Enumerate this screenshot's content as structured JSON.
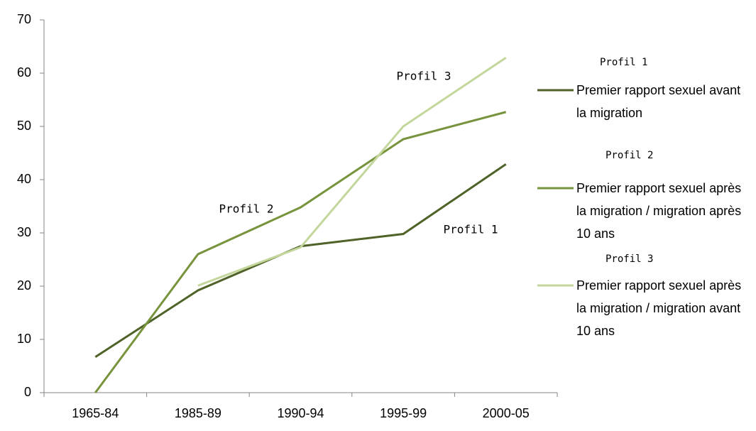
{
  "chart_data": {
    "type": "line",
    "categories": [
      "1965-84",
      "1985-89",
      "1990-94",
      "1995-99",
      "2000-05"
    ],
    "series": [
      {
        "name": "Premier rapport sexuel avant la migration",
        "label": "Profil 1",
        "color": "#4f6228",
        "values": [
          6.7,
          19.2,
          27.5,
          29.8,
          42.9
        ]
      },
      {
        "name": "Premier rapport sexuel après la migration / migration après 10 ans",
        "label": "Profil 2",
        "color": "#77933c",
        "values": [
          0,
          26,
          34.8,
          47.6,
          52.7
        ]
      },
      {
        "name": "Premier rapport sexuel après la migration / migration avant 10 ans",
        "label": "Profil 3",
        "color": "#c3d69b",
        "values": [
          null,
          20.1,
          27.3,
          50,
          62.9
        ]
      }
    ],
    "annotations": [
      "Profil 3",
      "Profil 2",
      "Profil 1"
    ],
    "ylim": [
      0,
      70
    ],
    "yticks": [
      0,
      10,
      20,
      30,
      40,
      50,
      60,
      70
    ],
    "grid": false,
    "legend": "right"
  }
}
